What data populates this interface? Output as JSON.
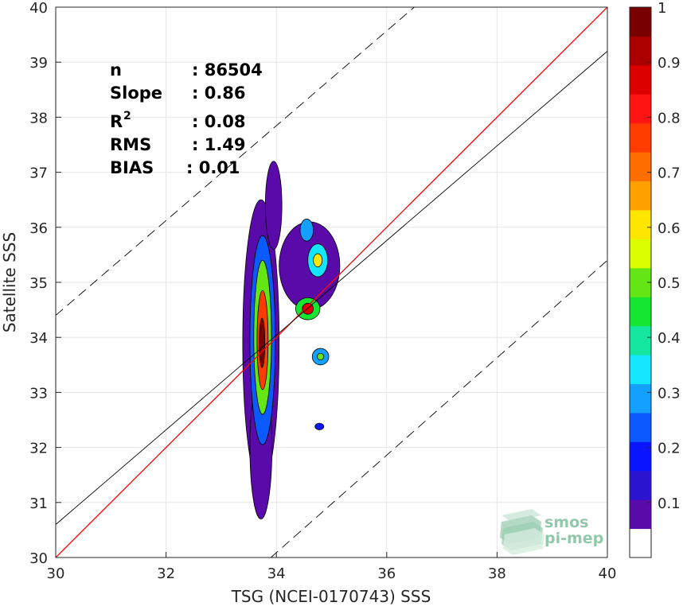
{
  "chart_data": {
    "type": "contour",
    "xlabel": "TSG (NCEI-0170743) SSS",
    "ylabel": "Satellite SSS",
    "xlim": [
      30,
      40
    ],
    "ylim": [
      30,
      40
    ],
    "xticks": [
      "30",
      "32",
      "34",
      "36",
      "38",
      "40"
    ],
    "yticks": [
      "30",
      "31",
      "32",
      "33",
      "34",
      "35",
      "36",
      "37",
      "38",
      "39",
      "40"
    ],
    "grid": true,
    "stats": [
      {
        "label": "n",
        "value": ": 86504"
      },
      {
        "label": "Slope",
        "value": ": 0.86"
      },
      {
        "label": "R",
        "sup": "2",
        "value": ": 0.08"
      },
      {
        "label": "RMS",
        "value": ": 1.49"
      },
      {
        "label": "BIAS",
        "value": ": 0.01"
      }
    ],
    "lines": {
      "identity": {
        "color": "#ff0000",
        "points": [
          [
            30,
            30
          ],
          [
            40,
            40
          ]
        ]
      },
      "regression": {
        "color": "#000000",
        "points": [
          [
            30,
            30.6
          ],
          [
            40,
            39.2
          ]
        ]
      },
      "upper_bound": {
        "color": "#000000",
        "dashed": true,
        "points": [
          [
            30,
            34.4
          ],
          [
            36.5,
            40
          ]
        ]
      },
      "lower_bound": {
        "color": "#000000",
        "dashed": true,
        "points": [
          [
            33.9,
            30
          ],
          [
            40,
            35.4
          ]
        ]
      }
    },
    "colorbar": {
      "ticks": [
        "0.1",
        "0.2",
        "0.3",
        "0.4",
        "0.5",
        "0.6",
        "0.7",
        "0.8",
        "0.9",
        "1"
      ],
      "colors": [
        "#ffffff",
        "#5a0aa8",
        "#2b14d0",
        "#0a14ff",
        "#0a5aff",
        "#14a0ff",
        "#14e6ff",
        "#14e6a0",
        "#14e632",
        "#64e614",
        "#dcff00",
        "#ffe600",
        "#ffa000",
        "#ff6e00",
        "#ff3c00",
        "#ff1414",
        "#dc0000",
        "#aa0000",
        "#780000"
      ],
      "range": [
        0,
        1
      ]
    },
    "density_blobs": [
      {
        "cx": 33.72,
        "cy": 33.9,
        "rx": 0.33,
        "ry": 2.6,
        "level": 0.05
      },
      {
        "cx": 33.72,
        "cy": 32.0,
        "rx": 0.2,
        "ry": 1.3,
        "level": 0.04
      },
      {
        "cx": 33.95,
        "cy": 36.4,
        "rx": 0.15,
        "ry": 0.8,
        "level": 0.04
      },
      {
        "cx": 34.6,
        "cy": 35.3,
        "rx": 0.55,
        "ry": 0.8,
        "level": 0.05
      },
      {
        "cx": 33.75,
        "cy": 33.95,
        "rx": 0.23,
        "ry": 1.9,
        "level": 0.2
      },
      {
        "cx": 33.75,
        "cy": 34.0,
        "rx": 0.16,
        "ry": 1.4,
        "level": 0.5
      },
      {
        "cx": 33.75,
        "cy": 33.95,
        "rx": 0.1,
        "ry": 0.9,
        "level": 0.75
      },
      {
        "cx": 33.74,
        "cy": 33.9,
        "rx": 0.05,
        "ry": 0.45,
        "level": 0.95
      },
      {
        "cx": 34.57,
        "cy": 34.52,
        "rx": 0.22,
        "ry": 0.2,
        "level": 0.4
      },
      {
        "cx": 34.57,
        "cy": 34.52,
        "rx": 0.1,
        "ry": 0.1,
        "level": 0.85
      },
      {
        "cx": 34.75,
        "cy": 35.4,
        "rx": 0.18,
        "ry": 0.3,
        "level": 0.3
      },
      {
        "cx": 34.75,
        "cy": 35.4,
        "rx": 0.08,
        "ry": 0.12,
        "level": 0.6
      },
      {
        "cx": 34.55,
        "cy": 35.95,
        "rx": 0.12,
        "ry": 0.2,
        "level": 0.25
      },
      {
        "cx": 34.8,
        "cy": 33.65,
        "rx": 0.15,
        "ry": 0.15,
        "level": 0.25
      },
      {
        "cx": 34.8,
        "cy": 33.65,
        "rx": 0.06,
        "ry": 0.06,
        "level": 0.5
      },
      {
        "cx": 34.78,
        "cy": 32.38,
        "rx": 0.08,
        "ry": 0.06,
        "level": 0.15
      }
    ]
  },
  "logo": {
    "line1": "smos",
    "line2": "pi-mep"
  }
}
